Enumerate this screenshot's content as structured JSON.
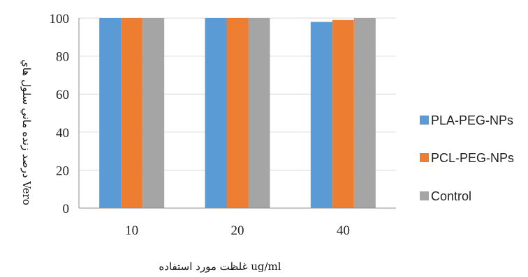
{
  "chart_data": {
    "type": "bar",
    "categories": [
      "10",
      "20",
      "40"
    ],
    "series": [
      {
        "name": "PLA-PEG-NPs",
        "values": [
          100,
          100,
          98
        ],
        "color": "#5B9BD5"
      },
      {
        "name": "PCL-PEG-NPs",
        "values": [
          100,
          100,
          99
        ],
        "color": "#ED7D31"
      },
      {
        "name": "Control",
        "values": [
          100,
          100,
          100
        ],
        "color": "#A5A5A5"
      }
    ],
    "ylabel": "درصد زنده ماني سلول هاي Vero",
    "xlabel": "غلظت مورد استفاده ug/ml",
    "ylim": [
      0,
      100
    ],
    "yticks": [
      0,
      20,
      40,
      60,
      80,
      100
    ],
    "grid": true,
    "legend": "right"
  }
}
